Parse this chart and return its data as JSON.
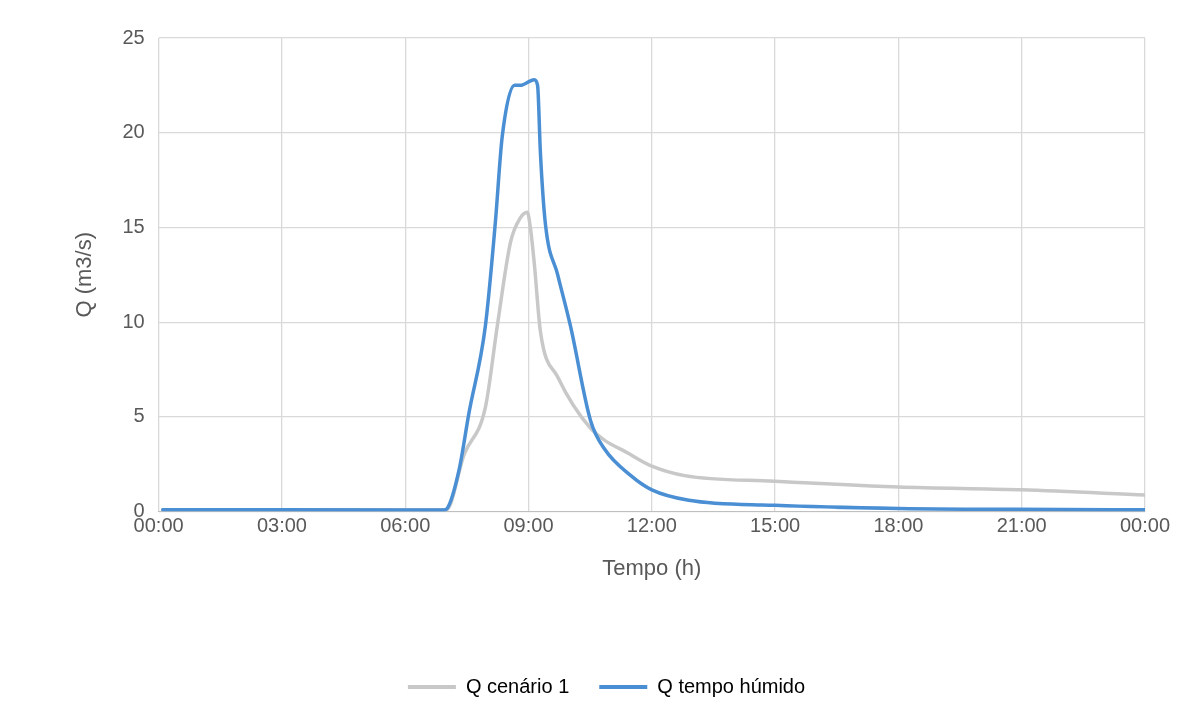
{
  "chart_data": {
    "type": "line",
    "xlabel": "Tempo (h)",
    "ylabel": "Q (m3/s)",
    "xlim": [
      0,
      24
    ],
    "xticks": [
      {
        "value": 0,
        "label": "00:00"
      },
      {
        "value": 3,
        "label": "03:00"
      },
      {
        "value": 6,
        "label": "06:00"
      },
      {
        "value": 9,
        "label": "09:00"
      },
      {
        "value": 12,
        "label": "12:00"
      },
      {
        "value": 15,
        "label": "15:00"
      },
      {
        "value": 18,
        "label": "18:00"
      },
      {
        "value": 21,
        "label": "21:00"
      },
      {
        "value": 24,
        "label": "00:00"
      }
    ],
    "ylim": [
      0,
      25
    ],
    "yticks": [
      0,
      5,
      10,
      15,
      20,
      25
    ],
    "grid": true,
    "legend": "bottom",
    "marker": "none",
    "line_style": "solid",
    "series": [
      {
        "name": "Q cenário 1",
        "color": "#c8c8c8",
        "x": [
          0.1,
          3,
          6,
          7.0,
          7.43,
          7.95,
          8.24,
          8.56,
          8.8,
          8.97,
          9.05,
          9.14,
          9.29,
          9.71,
          10.51,
          11.49,
          12.0,
          12.8,
          15.0,
          18.0,
          21.0,
          24.0
        ],
        "values": [
          0.1,
          0.1,
          0.1,
          0.1,
          3.0,
          5.5,
          9.8,
          14.2,
          15.5,
          15.8,
          14.9,
          13.1,
          9.5,
          7.1,
          4.4,
          3.0,
          2.4,
          1.9,
          1.6,
          1.3,
          1.15,
          0.87
        ]
      },
      {
        "name": "Q tempo húmido",
        "color": "#4a8fd4",
        "x": [
          0.1,
          3,
          6,
          6.94,
          7.02,
          7.31,
          7.55,
          7.95,
          8.19,
          8.36,
          8.66,
          8.8,
          9.14,
          9.22,
          9.29,
          9.41,
          9.71,
          10.02,
          10.51,
          10.85,
          11.49,
          12.0,
          12.9,
          15.0,
          18.0,
          24.0
        ],
        "values": [
          0.1,
          0.1,
          0.08,
          0.08,
          0.16,
          2.2,
          5.2,
          9.8,
          15.2,
          19.8,
          22.5,
          22.5,
          22.8,
          22.5,
          18.9,
          15.2,
          12.5,
          9.8,
          4.8,
          3.3,
          1.9,
          1.15,
          0.6,
          0.33,
          0.17,
          0.1
        ]
      }
    ]
  }
}
